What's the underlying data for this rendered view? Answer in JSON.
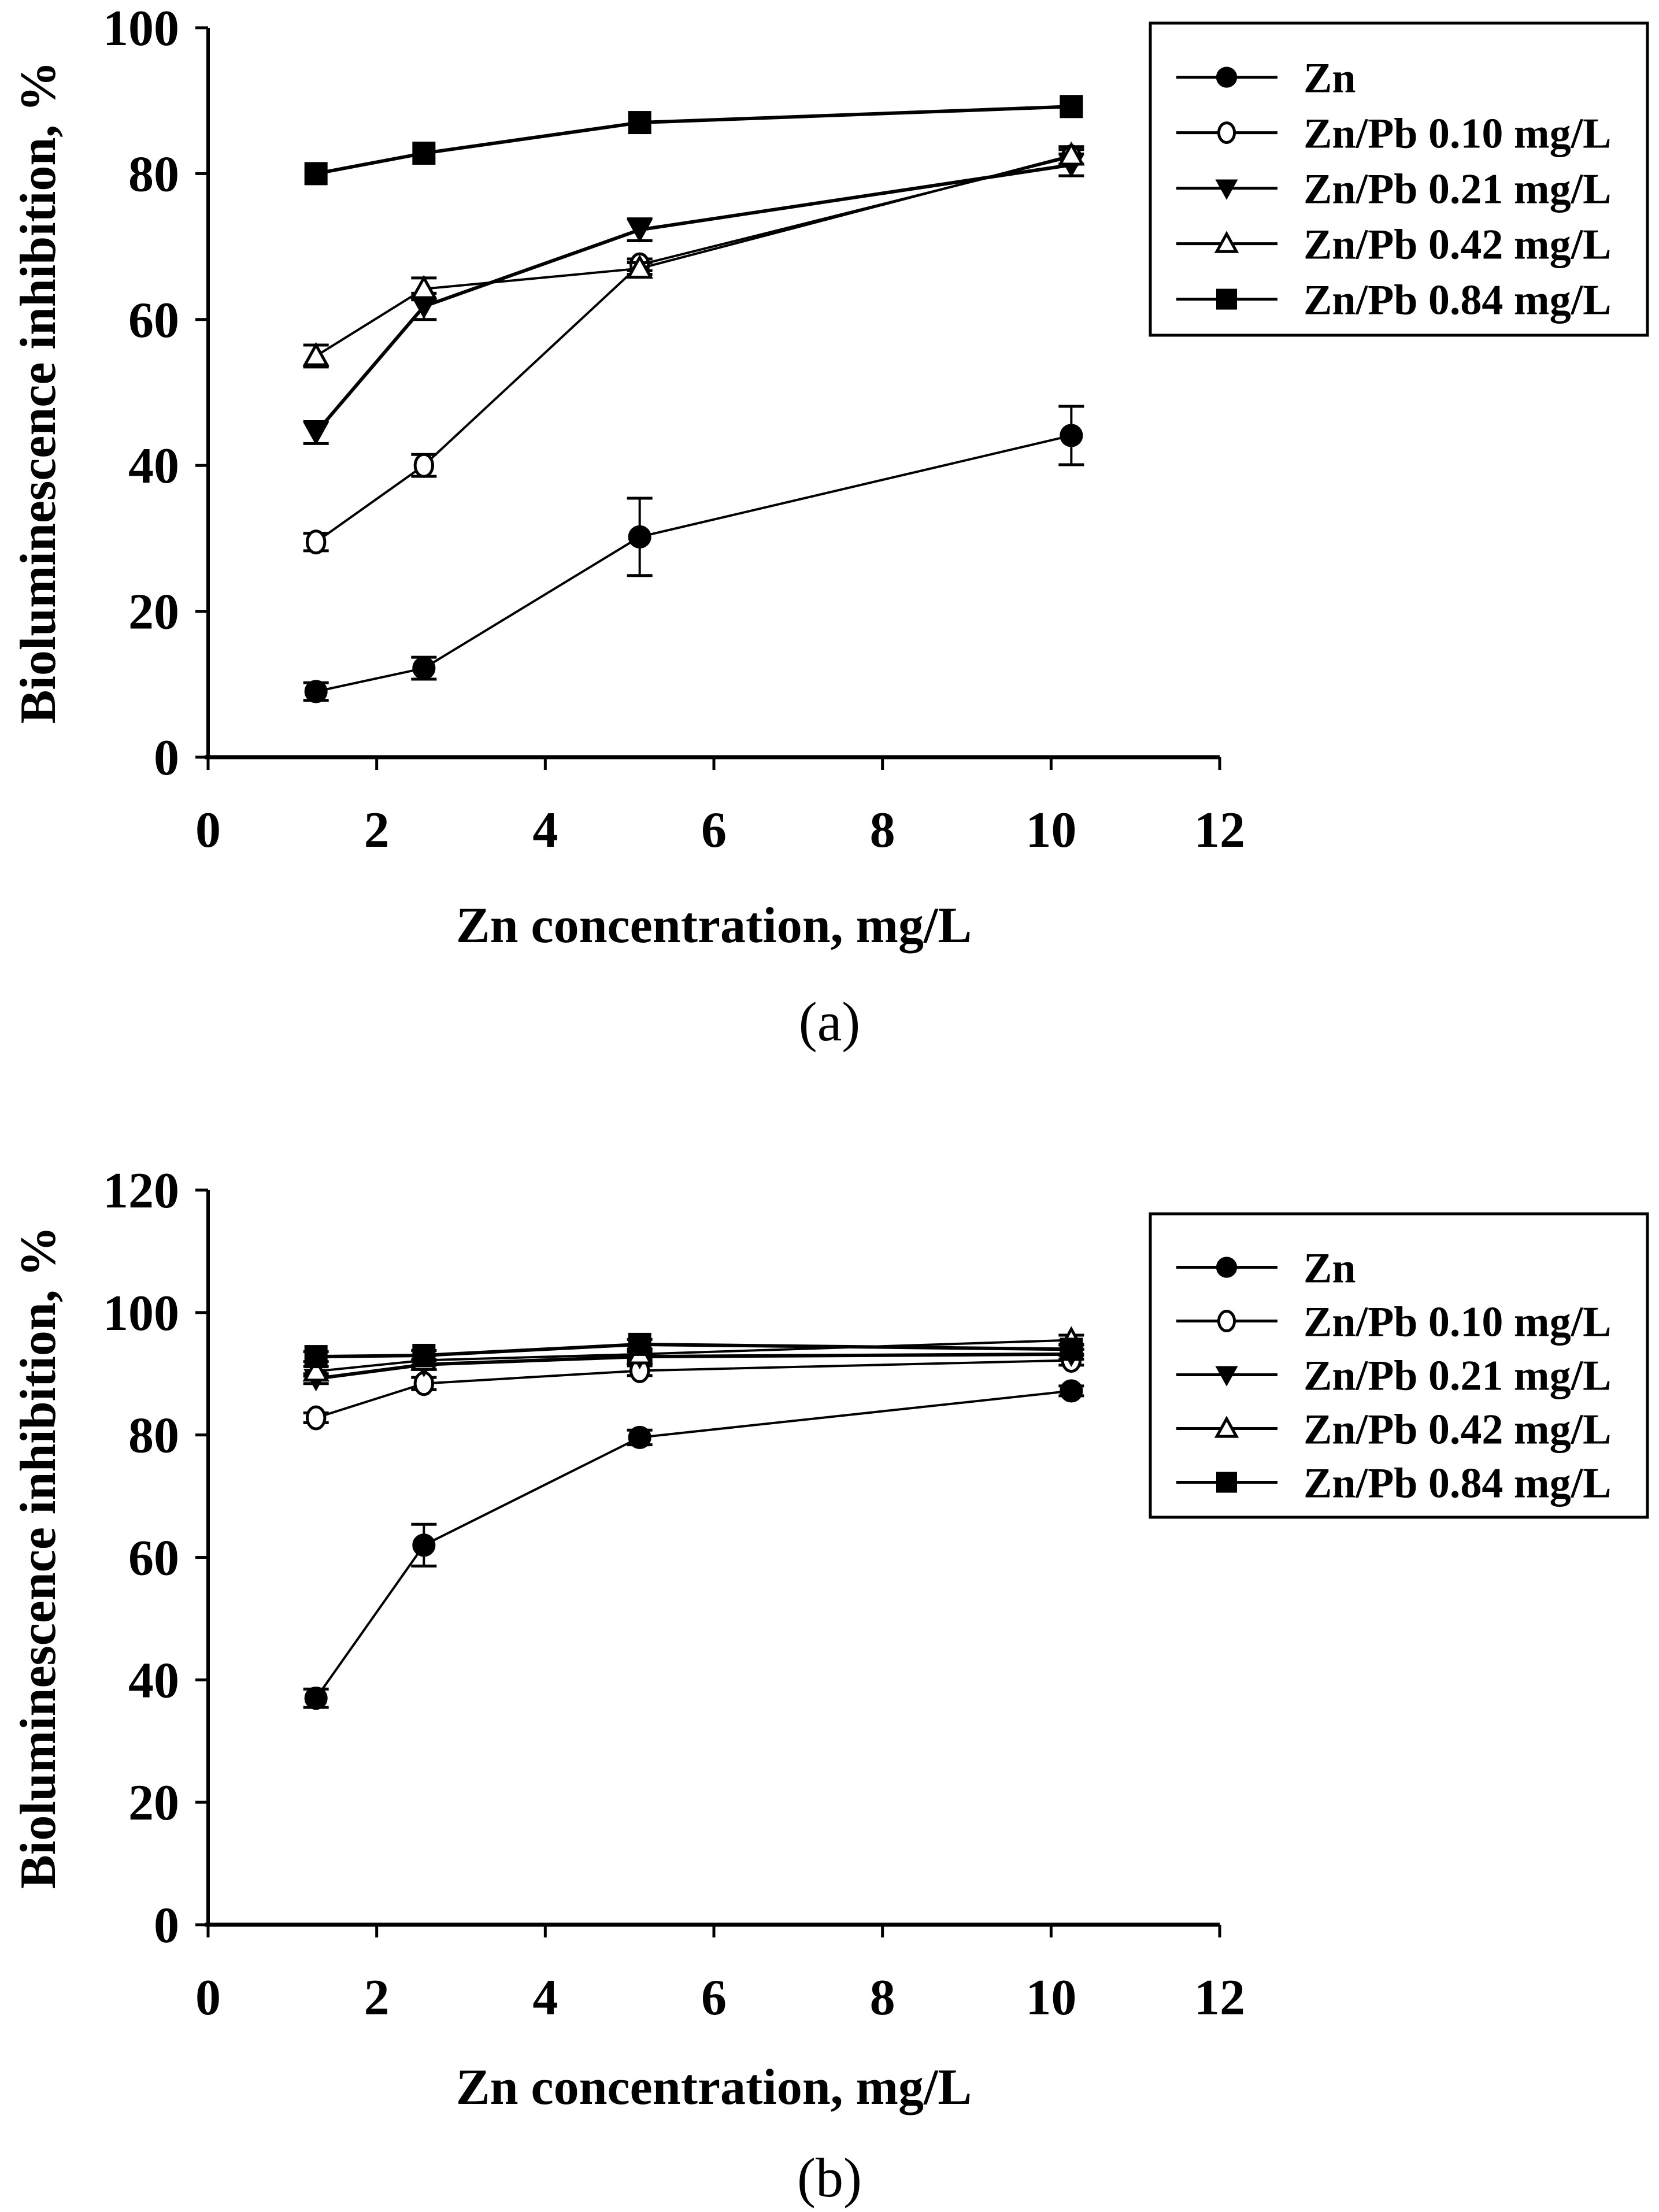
{
  "figure": {
    "panels": [
      "(a)",
      "(b)"
    ]
  },
  "chart_data": [
    {
      "type": "line",
      "panel_label": "(a)",
      "title": "",
      "xlabel": "Zn concentration, mg/L",
      "ylabel": "Bioluminescence inhibition, %",
      "xlim": [
        0,
        12
      ],
      "ylim": [
        0,
        100
      ],
      "x_ticks": [
        0,
        2,
        4,
        6,
        8,
        10,
        12
      ],
      "y_ticks": [
        0,
        20,
        40,
        60,
        80,
        100
      ],
      "grid": false,
      "legend_position": "top-right",
      "x": [
        1.28,
        2.56,
        5.12,
        10.24
      ],
      "series": [
        {
          "name": "Zn",
          "marker": "filled-circle",
          "values": [
            9,
            12.2,
            30.2,
            44.1
          ],
          "errors": [
            1.2,
            1.5,
            5.3,
            4.0
          ]
        },
        {
          "name": "Zn/Pb 0.10 mg/L",
          "marker": "open-circle",
          "values": [
            29.5,
            40,
            67.5,
            82.3
          ],
          "errors": [
            1.2,
            1.5,
            0.8,
            1.0
          ]
        },
        {
          "name": "Zn/Pb 0.21 mg/L",
          "marker": "filled-down-triangle",
          "values": [
            44.5,
            61.8,
            72.3,
            81.2
          ],
          "errors": [
            1.5,
            1.8,
            1.5,
            1.5
          ]
        },
        {
          "name": "Zn/Pb 0.42 mg/L",
          "marker": "open-triangle",
          "values": [
            55,
            64.2,
            67,
            82.5
          ],
          "errors": [
            1.5,
            1.5,
            0.8,
            1.2
          ]
        },
        {
          "name": "Zn/Pb 0.84 mg/L",
          "marker": "filled-square",
          "values": [
            80,
            82.8,
            87,
            89.2
          ],
          "errors": [
            0.5,
            0.5,
            0.6,
            0.5
          ]
        }
      ]
    },
    {
      "type": "line",
      "panel_label": "(b)",
      "title": "",
      "xlabel": "Zn concentration, mg/L",
      "ylabel": "Bioluminescence inhibition, %",
      "xlim": [
        0,
        12
      ],
      "ylim": [
        0,
        120
      ],
      "x_ticks": [
        0,
        2,
        4,
        6,
        8,
        10,
        12
      ],
      "y_ticks": [
        0,
        20,
        40,
        60,
        80,
        100,
        120
      ],
      "grid": false,
      "legend_position": "top-right",
      "x": [
        1.28,
        2.56,
        5.12,
        10.24
      ],
      "series": [
        {
          "name": "Zn",
          "marker": "filled-circle",
          "values": [
            37,
            62,
            79.6,
            87.2
          ],
          "errors": [
            1.5,
            3.4,
            1.2,
            0.8
          ]
        },
        {
          "name": "Zn/Pb 0.10 mg/L",
          "marker": "open-circle",
          "values": [
            82.8,
            88.4,
            90.5,
            92.2
          ],
          "errors": [
            0.8,
            1.0,
            0.8,
            0.8
          ]
        },
        {
          "name": "Zn/Pb 0.21 mg/L",
          "marker": "filled-down-triangle",
          "values": [
            89.2,
            91.5,
            92.8,
            93.2
          ],
          "errors": [
            0.8,
            0.8,
            0.8,
            0.8
          ]
        },
        {
          "name": "Zn/Pb 0.42 mg/L",
          "marker": "open-triangle",
          "values": [
            90.4,
            92.2,
            93.2,
            95.5
          ],
          "errors": [
            0.8,
            0.8,
            0.8,
            0.8
          ]
        },
        {
          "name": "Zn/Pb 0.84 mg/L",
          "marker": "filled-square",
          "values": [
            92.8,
            93,
            94.8,
            94
          ],
          "errors": [
            0.8,
            0.8,
            0.8,
            0.8
          ]
        }
      ]
    }
  ]
}
